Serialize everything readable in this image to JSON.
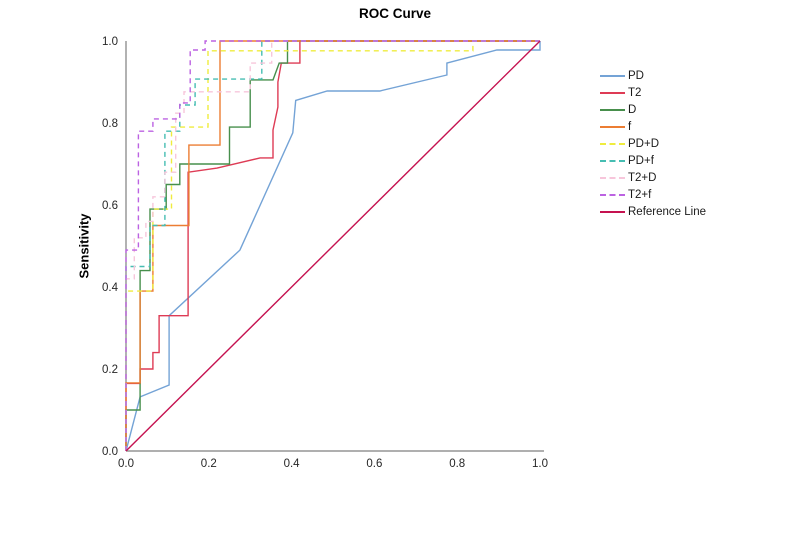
{
  "chart": {
    "title": "ROC Curve",
    "ylabel": "Sensitivity",
    "xlabel": ""
  },
  "chart_data": {
    "type": "line",
    "title": "ROC Curve",
    "xlabel": "",
    "ylabel": "Sensitivity",
    "xlim": [
      0,
      1
    ],
    "ylim": [
      0,
      1
    ],
    "grid": false,
    "legend_position": "right",
    "axis_color": "#7f7f7f",
    "x_ticks": {
      "values": [
        0,
        0.2,
        0.4,
        0.6,
        0.8,
        1.0
      ],
      "labels": [
        "0.0",
        "0.2",
        "0.4",
        "0.6",
        "0.8",
        "1.0"
      ]
    },
    "y_ticks": {
      "values": [
        0,
        0.2,
        0.4,
        0.6,
        0.8,
        1.0
      ],
      "labels": [
        "0.0",
        "0.2",
        "0.4",
        "0.6",
        "0.8",
        "1.0"
      ]
    },
    "series": [
      {
        "name": "PD",
        "color": "#74a3d6",
        "dash": "solid",
        "points": [
          [
            0,
            0
          ],
          [
            0.034,
            0.132
          ],
          [
            0.104,
            0.161
          ],
          [
            0.104,
            0.33
          ],
          [
            0.275,
            0.49
          ],
          [
            0.403,
            0.776
          ],
          [
            0.41,
            0.855
          ],
          [
            0.486,
            0.878
          ],
          [
            0.613,
            0.878
          ],
          [
            0.775,
            0.917
          ],
          [
            0.775,
            0.946
          ],
          [
            0.896,
            0.978
          ],
          [
            1,
            0.978
          ],
          [
            1,
            1
          ]
        ]
      },
      {
        "name": "T2",
        "color": "#de3b55",
        "dash": "solid",
        "points": [
          [
            0,
            0
          ],
          [
            0,
            0.165
          ],
          [
            0.034,
            0.165
          ],
          [
            0.034,
            0.2
          ],
          [
            0.065,
            0.2
          ],
          [
            0.065,
            0.24
          ],
          [
            0.08,
            0.24
          ],
          [
            0.08,
            0.33
          ],
          [
            0.15,
            0.33
          ],
          [
            0.15,
            0.68
          ],
          [
            0.22,
            0.69
          ],
          [
            0.324,
            0.715
          ],
          [
            0.355,
            0.715
          ],
          [
            0.355,
            0.783
          ],
          [
            0.367,
            0.839
          ],
          [
            0.367,
            0.9
          ],
          [
            0.375,
            0.946
          ],
          [
            0.42,
            0.946
          ],
          [
            0.42,
            1
          ],
          [
            1,
            1
          ]
        ]
      },
      {
        "name": "D",
        "color": "#478f4c",
        "dash": "solid",
        "points": [
          [
            0,
            0
          ],
          [
            0,
            0.1
          ],
          [
            0.034,
            0.1
          ],
          [
            0.034,
            0.44
          ],
          [
            0.058,
            0.44
          ],
          [
            0.058,
            0.59
          ],
          [
            0.097,
            0.59
          ],
          [
            0.097,
            0.65
          ],
          [
            0.13,
            0.65
          ],
          [
            0.13,
            0.7
          ],
          [
            0.25,
            0.7
          ],
          [
            0.25,
            0.79
          ],
          [
            0.3,
            0.79
          ],
          [
            0.3,
            0.905
          ],
          [
            0.355,
            0.905
          ],
          [
            0.37,
            0.946
          ],
          [
            0.39,
            0.946
          ],
          [
            0.39,
            1
          ],
          [
            1,
            1
          ]
        ]
      },
      {
        "name": "f",
        "color": "#ec7d33",
        "dash": "solid",
        "points": [
          [
            0,
            0
          ],
          [
            0,
            0.166
          ],
          [
            0.034,
            0.166
          ],
          [
            0.034,
            0.39
          ],
          [
            0.065,
            0.39
          ],
          [
            0.065,
            0.55
          ],
          [
            0.152,
            0.55
          ],
          [
            0.152,
            0.746
          ],
          [
            0.227,
            0.746
          ],
          [
            0.227,
            1
          ],
          [
            1,
            1
          ]
        ]
      },
      {
        "name": "PD+D",
        "color": "#efec3e",
        "dash": "dashed",
        "points": [
          [
            0,
            0
          ],
          [
            0,
            0.39
          ],
          [
            0.065,
            0.39
          ],
          [
            0.065,
            0.59
          ],
          [
            0.11,
            0.59
          ],
          [
            0.11,
            0.79
          ],
          [
            0.198,
            0.79
          ],
          [
            0.198,
            0.976
          ],
          [
            0.838,
            0.976
          ],
          [
            0.838,
            1
          ],
          [
            1,
            1
          ]
        ]
      },
      {
        "name": "PD+f",
        "color": "#46bdb2",
        "dash": "dashed",
        "points": [
          [
            0,
            0
          ],
          [
            0,
            0.45
          ],
          [
            0.058,
            0.45
          ],
          [
            0.058,
            0.55
          ],
          [
            0.094,
            0.55
          ],
          [
            0.094,
            0.78
          ],
          [
            0.13,
            0.78
          ],
          [
            0.13,
            0.844
          ],
          [
            0.167,
            0.844
          ],
          [
            0.167,
            0.907
          ],
          [
            0.328,
            0.907
          ],
          [
            0.328,
            1
          ],
          [
            1,
            1
          ]
        ]
      },
      {
        "name": "T2+D",
        "color": "#f7c6db",
        "dash": "dashed",
        "points": [
          [
            0,
            0
          ],
          [
            0,
            0.42
          ],
          [
            0.02,
            0.42
          ],
          [
            0.02,
            0.52
          ],
          [
            0.048,
            0.52
          ],
          [
            0.048,
            0.56
          ],
          [
            0.065,
            0.56
          ],
          [
            0.065,
            0.62
          ],
          [
            0.094,
            0.62
          ],
          [
            0.094,
            0.68
          ],
          [
            0.12,
            0.68
          ],
          [
            0.12,
            0.824
          ],
          [
            0.14,
            0.824
          ],
          [
            0.14,
            0.876
          ],
          [
            0.3,
            0.876
          ],
          [
            0.3,
            0.946
          ],
          [
            0.352,
            0.946
          ],
          [
            0.352,
            1
          ],
          [
            1,
            1
          ]
        ]
      },
      {
        "name": "T2+f",
        "color": "#bc62e2",
        "dash": "dashed",
        "points": [
          [
            0,
            0
          ],
          [
            0,
            0.49
          ],
          [
            0.03,
            0.49
          ],
          [
            0.03,
            0.78
          ],
          [
            0.065,
            0.78
          ],
          [
            0.065,
            0.81
          ],
          [
            0.13,
            0.81
          ],
          [
            0.13,
            0.849
          ],
          [
            0.155,
            0.849
          ],
          [
            0.155,
            0.978
          ],
          [
            0.191,
            0.978
          ],
          [
            0.191,
            1
          ],
          [
            1,
            1
          ]
        ]
      },
      {
        "name": "Reference Line",
        "color": "#c51250",
        "dash": "solid",
        "points": [
          [
            0,
            0
          ],
          [
            1,
            1
          ]
        ]
      }
    ]
  }
}
